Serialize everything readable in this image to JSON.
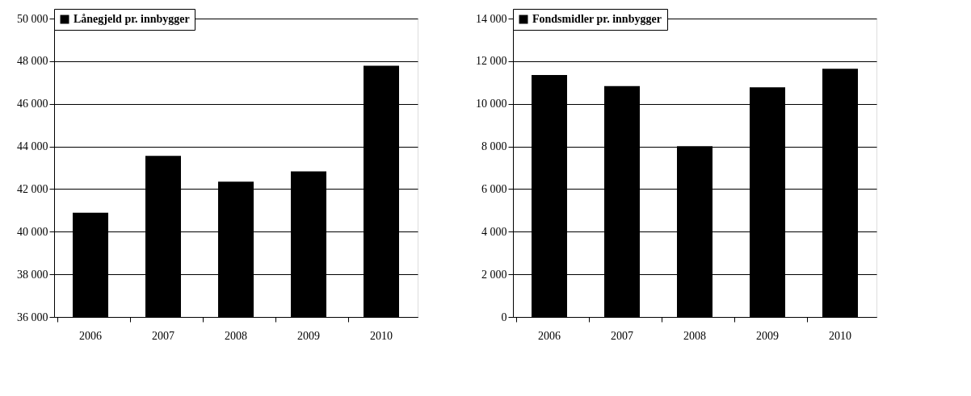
{
  "chart_data": [
    {
      "type": "bar",
      "categories": [
        "2006",
        "2007",
        "2008",
        "2009",
        "2010"
      ],
      "series": [
        {
          "name": "Lånegjeld pr. innbygger",
          "color": "#000000",
          "values": [
            40890,
            43560,
            42350,
            42830,
            47790
          ]
        }
      ],
      "ylim": [
        36000,
        50000
      ],
      "yticks": [
        {
          "value": 36000,
          "label": "36 000"
        },
        {
          "value": 38000,
          "label": "38 000"
        },
        {
          "value": 40000,
          "label": "40 000"
        },
        {
          "value": 42000,
          "label": "42 000"
        },
        {
          "value": 44000,
          "label": "44 000"
        },
        {
          "value": 46000,
          "label": "46 000"
        },
        {
          "value": 48000,
          "label": "48 000"
        },
        {
          "value": 50000,
          "label": "50 000"
        }
      ],
      "grid": "y",
      "legend": "top"
    },
    {
      "type": "bar",
      "categories": [
        "2006",
        "2007",
        "2008",
        "2009",
        "2010"
      ],
      "series": [
        {
          "name": "Fondsmidler pr. innbygger",
          "color": "#000000",
          "values": [
            11350,
            10830,
            8010,
            10770,
            11640
          ]
        }
      ],
      "ylim": [
        0,
        14000
      ],
      "yticks": [
        {
          "value": 0,
          "label": "0"
        },
        {
          "value": 2000,
          "label": "2 000"
        },
        {
          "value": 4000,
          "label": "4 000"
        },
        {
          "value": 6000,
          "label": "6 000"
        },
        {
          "value": 8000,
          "label": "8 000"
        },
        {
          "value": 10000,
          "label": "10 000"
        },
        {
          "value": 12000,
          "label": "12 000"
        },
        {
          "value": 14000,
          "label": "14 000"
        }
      ],
      "grid": "y",
      "legend": "top"
    }
  ]
}
